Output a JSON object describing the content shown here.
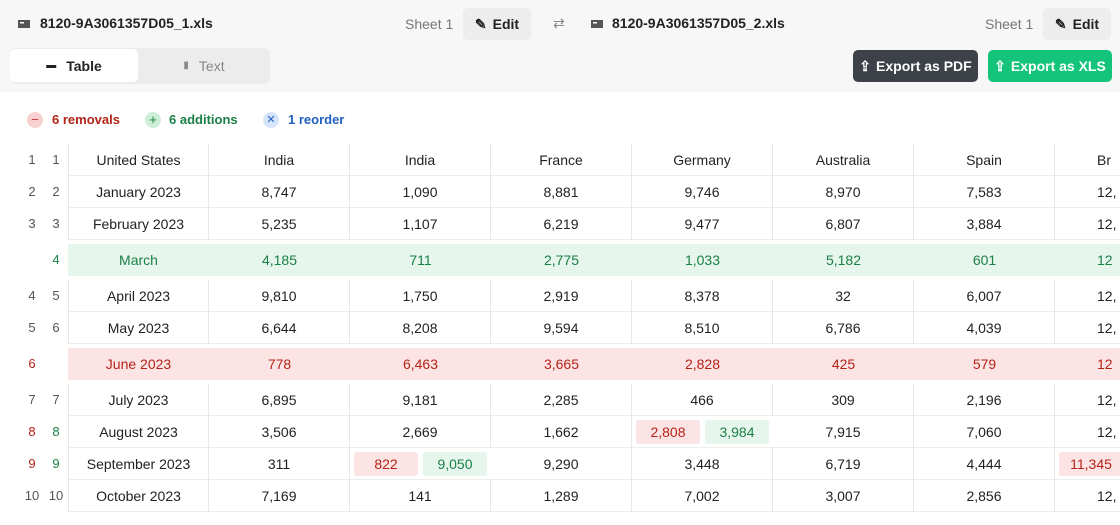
{
  "header": {
    "left_file": "8120-9A3061357D05_1.xls",
    "left_sheet": "Sheet 1",
    "left_edit": "Edit",
    "right_file": "8120-9A3061357D05_2.xls",
    "right_sheet": "Sheet 1",
    "right_edit": "Edit"
  },
  "tabs": [
    "Table",
    "Text"
  ],
  "buttons": {
    "pdf": "Export as PDF",
    "xls": "Export as XLS"
  },
  "summary": {
    "removals": "6 removals",
    "additions": "6 additions",
    "reorder": "1 reorder"
  },
  "table": {
    "rows": [
      {
        "left": "1",
        "right": "1",
        "kind": "same",
        "cells": [
          "United States",
          "India",
          "India",
          "France",
          "Germany",
          "Australia",
          "Spain",
          "Br"
        ]
      },
      {
        "left": "2",
        "right": "2",
        "kind": "same",
        "cells": [
          "January 2023",
          "8,747",
          "1,090",
          "8,881",
          "9,746",
          "8,970",
          "7,583",
          "12,"
        ]
      },
      {
        "left": "3",
        "right": "3",
        "kind": "same",
        "cells": [
          "February 2023",
          "5,235",
          "1,107",
          "6,219",
          "9,477",
          "6,807",
          "3,884",
          "12,"
        ]
      },
      {
        "right": "4",
        "kind": "added",
        "cells": [
          "March",
          "4,185",
          "711",
          "2,775",
          "1,033",
          "5,182",
          "601",
          "12"
        ]
      },
      {
        "left": "4",
        "right": "5",
        "kind": "same",
        "cells": [
          "April 2023",
          "9,810",
          "1,750",
          "2,919",
          "8,378",
          "32",
          "6,007",
          "12,"
        ]
      },
      {
        "left": "5",
        "right": "6",
        "kind": "same",
        "cells": [
          "May 2023",
          "6,644",
          "8,208",
          "9,594",
          "8,510",
          "6,786",
          "4,039",
          "12,"
        ]
      },
      {
        "left": "6",
        "kind": "removed",
        "cells": [
          "June 2023",
          "778",
          "6,463",
          "3,665",
          "2,828",
          "425",
          "579",
          "12"
        ]
      },
      {
        "left": "7",
        "right": "7",
        "kind": "same",
        "cells": [
          "July 2023",
          "6,895",
          "9,181",
          "2,285",
          "466",
          "309",
          "2,196",
          "12,"
        ]
      },
      {
        "left": "8",
        "right": "8",
        "kind": "changed",
        "cells": [
          "August 2023",
          "3,506",
          "2,669",
          "1,662",
          {
            "old": "2,808",
            "new": "3,984"
          },
          "7,915",
          "7,060",
          "12,"
        ]
      },
      {
        "left": "9",
        "right": "9",
        "kind": "changed",
        "cells": [
          "September 2023",
          "311",
          {
            "old": "822",
            "new": "9,050"
          },
          "9,290",
          "3,448",
          "6,719",
          "4,444",
          {
            "old": "11,345"
          }
        ]
      },
      {
        "left": "10",
        "right": "10",
        "kind": "same",
        "cells": [
          "October 2023",
          "7,169",
          "141",
          "1,289",
          "7,002",
          "3,007",
          "2,856",
          "12,"
        ]
      }
    ]
  }
}
